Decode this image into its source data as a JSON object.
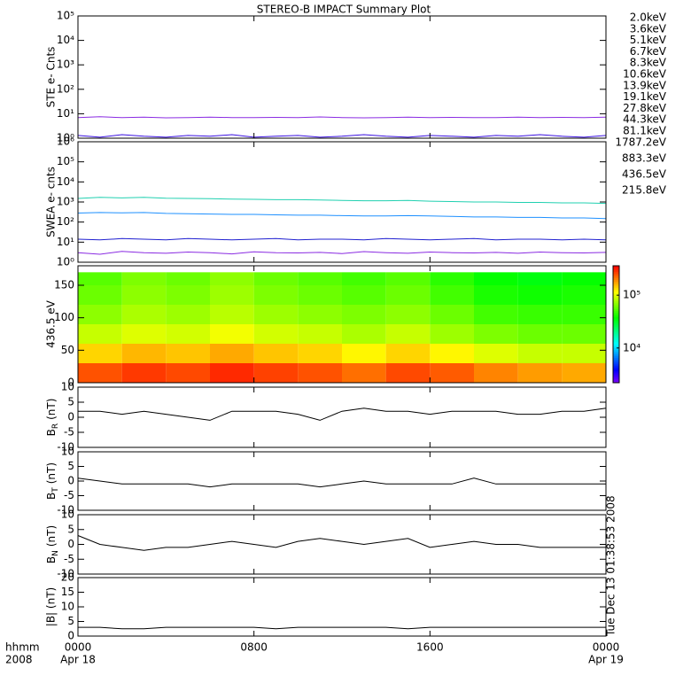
{
  "chart_data": [
    {
      "type": "line",
      "title": "STEREO-B IMPACT Summary Plot",
      "ylabel": "STE e- Cnts",
      "yscale": "log",
      "xlim": [
        0,
        24
      ],
      "ylim": [
        1,
        100000
      ],
      "yticks": [
        {
          "value": 1,
          "label": "10⁰"
        },
        {
          "value": 10,
          "label": "10¹"
        },
        {
          "value": 100,
          "label": "10²"
        },
        {
          "value": 1000,
          "label": "10³"
        },
        {
          "value": 10000,
          "label": "10⁴"
        },
        {
          "value": 100000,
          "label": "10⁵"
        }
      ],
      "x": [
        0,
        1,
        2,
        3,
        4,
        5,
        6,
        7,
        8,
        9,
        10,
        11,
        12,
        13,
        14,
        15,
        16,
        17,
        18,
        19,
        20,
        21,
        22,
        23,
        24
      ],
      "series": [
        {
          "name": "2.0keV",
          "color": "#8a2be2",
          "values": [
            7,
            7.5,
            7,
            7.2,
            6.8,
            7,
            7.3,
            7,
            6.9,
            7.1,
            7,
            7.4,
            7,
            6.8,
            7,
            7.2,
            7,
            7.1,
            6.9,
            7,
            7.3,
            7,
            7.1,
            7,
            7.2
          ]
        },
        {
          "name": "3.6keV",
          "color": "#3a10e0",
          "values": [
            1.3,
            1.1,
            1.4,
            1.2,
            1.1,
            1.3,
            1.2,
            1.4,
            1.1,
            1.2,
            1.3,
            1.1,
            1.2,
            1.4,
            1.2,
            1.1,
            1.3,
            1.2,
            1.1,
            1.3,
            1.2,
            1.4,
            1.2,
            1.1,
            1.3
          ]
        },
        {
          "name": "5.1keV",
          "color": "#0050ff",
          "values": [
            null,
            null,
            null,
            null,
            null,
            null,
            null,
            null,
            null,
            null,
            null,
            null,
            null,
            null,
            null,
            null,
            null,
            null,
            null,
            null,
            null,
            null,
            null,
            null,
            null
          ]
        },
        {
          "name": "6.7keV",
          "color": "#00a8ff",
          "values": [
            null,
            null,
            null,
            null,
            null,
            null,
            null,
            null,
            null,
            null,
            null,
            null,
            null,
            null,
            null,
            null,
            null,
            null,
            null,
            null,
            null,
            null,
            null,
            null,
            null
          ]
        },
        {
          "name": "8.3keV",
          "color": "#00d8d0",
          "values": [
            null,
            null,
            null,
            null,
            null,
            null,
            null,
            null,
            null,
            null,
            null,
            null,
            null,
            null,
            null,
            null,
            null,
            null,
            null,
            null,
            null,
            null,
            null,
            null,
            null
          ]
        },
        {
          "name": "10.6keV",
          "color": "#00c878",
          "values": [
            null,
            null,
            null,
            null,
            null,
            null,
            null,
            null,
            null,
            null,
            null,
            null,
            null,
            null,
            null,
            null,
            null,
            null,
            null,
            null,
            null,
            null,
            null,
            null,
            null
          ]
        },
        {
          "name": "13.9keV",
          "color": "#30c800",
          "values": [
            null,
            null,
            null,
            null,
            null,
            null,
            null,
            null,
            null,
            null,
            null,
            null,
            null,
            null,
            null,
            null,
            null,
            null,
            null,
            null,
            null,
            null,
            null,
            null,
            null
          ]
        },
        {
          "name": "19.1keV",
          "color": "#b8d800",
          "values": [
            null,
            null,
            null,
            null,
            null,
            null,
            null,
            null,
            null,
            null,
            null,
            null,
            null,
            null,
            null,
            null,
            null,
            null,
            null,
            null,
            null,
            null,
            null,
            null,
            null
          ]
        },
        {
          "name": "27.8keV",
          "color": "#ffb400",
          "values": [
            null,
            null,
            null,
            null,
            null,
            null,
            null,
            null,
            null,
            null,
            null,
            null,
            null,
            null,
            null,
            null,
            null,
            null,
            null,
            null,
            null,
            null,
            null,
            null,
            null
          ]
        },
        {
          "name": "44.3keV",
          "color": "#ff7000",
          "values": [
            null,
            null,
            null,
            null,
            null,
            null,
            null,
            null,
            null,
            null,
            null,
            null,
            null,
            null,
            null,
            null,
            null,
            null,
            null,
            null,
            null,
            null,
            null,
            null,
            null
          ]
        },
        {
          "name": "81.1keV",
          "color": "#e02010",
          "values": [
            null,
            null,
            null,
            null,
            null,
            null,
            null,
            null,
            null,
            null,
            null,
            null,
            null,
            null,
            null,
            null,
            null,
            null,
            null,
            null,
            null,
            null,
            null,
            null,
            null
          ]
        }
      ]
    },
    {
      "type": "line",
      "ylabel": "SWEA e- cnts",
      "yscale": "log",
      "xlim": [
        0,
        24
      ],
      "ylim": [
        1,
        1000000
      ],
      "yticks": [
        {
          "value": 1,
          "label": "10⁰"
        },
        {
          "value": 10,
          "label": "10¹"
        },
        {
          "value": 100,
          "label": "10²"
        },
        {
          "value": 1000,
          "label": "10³"
        },
        {
          "value": 10000,
          "label": "10⁴"
        },
        {
          "value": 100000,
          "label": "10⁵"
        },
        {
          "value": 1000000,
          "label": "10⁶"
        }
      ],
      "x": [
        0,
        1,
        2,
        3,
        4,
        5,
        6,
        7,
        8,
        9,
        10,
        11,
        12,
        13,
        14,
        15,
        16,
        17,
        18,
        19,
        20,
        21,
        22,
        23,
        24
      ],
      "series": [
        {
          "name": "1787.2eV",
          "color": "#8a2be2",
          "values": [
            3,
            2.5,
            3.5,
            3,
            2.8,
            3.2,
            3,
            2.6,
            3.3,
            3,
            2.9,
            3.1,
            2.7,
            3.4,
            3,
            2.8,
            3.2,
            3,
            2.9,
            3.1,
            2.8,
            3.2,
            3,
            2.9,
            3.1
          ]
        },
        {
          "name": "883.3eV",
          "color": "#2020d0",
          "values": [
            14,
            13,
            15,
            14,
            13,
            15,
            14,
            13,
            14,
            15,
            13,
            14,
            14,
            13,
            15,
            14,
            13,
            14,
            15,
            13,
            14,
            14,
            13,
            14,
            13
          ]
        },
        {
          "name": "436.5eV",
          "color": "#1e90ff",
          "values": [
            280,
            300,
            290,
            300,
            270,
            260,
            250,
            240,
            240,
            230,
            220,
            220,
            210,
            200,
            200,
            210,
            200,
            190,
            180,
            180,
            170,
            170,
            160,
            160,
            150
          ]
        },
        {
          "name": "215.8eV",
          "color": "#20d0b0",
          "values": [
            1500,
            1700,
            1600,
            1700,
            1550,
            1500,
            1450,
            1400,
            1350,
            1300,
            1300,
            1250,
            1200,
            1150,
            1150,
            1200,
            1100,
            1050,
            1000,
            1000,
            950,
            950,
            900,
            900,
            850
          ]
        }
      ]
    },
    {
      "type": "heatmap",
      "ylabel": "436.5 eV",
      "xlim": [
        0,
        24
      ],
      "ylim": [
        0,
        180
      ],
      "yticks": [
        0,
        50,
        100,
        150
      ],
      "xbins": [
        0,
        2,
        4,
        6,
        8,
        10,
        12,
        14,
        16,
        18,
        20,
        22,
        24
      ],
      "ybins": [
        0,
        30,
        60,
        90,
        120,
        150,
        170
      ],
      "z": [
        [
          250000,
          280000,
          260000,
          300000,
          270000,
          250000,
          220000,
          260000,
          240000,
          200000,
          180000,
          170000
        ],
        [
          140000,
          160000,
          150000,
          170000,
          150000,
          140000,
          120000,
          140000,
          120000,
          100000,
          90000,
          90000
        ],
        [
          90000,
          100000,
          95000,
          110000,
          95000,
          90000,
          80000,
          90000,
          75000,
          65000,
          60000,
          60000
        ],
        [
          70000,
          80000,
          75000,
          85000,
          75000,
          70000,
          65000,
          70000,
          60000,
          50000,
          48000,
          48000
        ],
        [
          60000,
          70000,
          65000,
          75000,
          65000,
          60000,
          55000,
          60000,
          50000,
          42000,
          40000,
          42000
        ],
        [
          55000,
          65000,
          60000,
          70000,
          60000,
          55000,
          50000,
          55000,
          45000,
          38000,
          35000,
          38000
        ]
      ],
      "clim": [
        2200,
        360000
      ],
      "cscale": "log",
      "cticks": [
        {
          "value": 10000,
          "label": "10⁴"
        },
        {
          "value": 100000,
          "label": "10⁵"
        }
      ]
    },
    {
      "type": "line",
      "ylabel": "B",
      "ylabel_sub": "R",
      "ylabel_unit": "(nT)",
      "xlim": [
        0,
        24
      ],
      "ylim": [
        -10,
        10
      ],
      "yticks": [
        -10,
        -5,
        0,
        5,
        10
      ],
      "x": [
        0,
        1,
        2,
        3,
        4,
        5,
        6,
        7,
        8,
        9,
        10,
        11,
        12,
        13,
        14,
        15,
        16,
        17,
        18,
        19,
        20,
        21,
        22,
        23,
        24
      ],
      "series": [
        {
          "color": "#000000",
          "values": [
            2,
            2,
            1,
            2,
            1,
            0,
            -1,
            2,
            2,
            2,
            1,
            -1,
            2,
            3,
            2,
            2,
            1,
            2,
            2,
            2,
            1,
            1,
            2,
            2,
            3
          ]
        }
      ]
    },
    {
      "type": "line",
      "ylabel": "B",
      "ylabel_sub": "T",
      "ylabel_unit": "(nT)",
      "xlim": [
        0,
        24
      ],
      "ylim": [
        -10,
        10
      ],
      "yticks": [
        -10,
        -5,
        0,
        5,
        10
      ],
      "x": [
        0,
        1,
        2,
        3,
        4,
        5,
        6,
        7,
        8,
        9,
        10,
        11,
        12,
        13,
        14,
        15,
        16,
        17,
        18,
        19,
        20,
        21,
        22,
        23,
        24
      ],
      "series": [
        {
          "color": "#000000",
          "values": [
            1,
            0,
            -1,
            -1,
            -1,
            -1,
            -2,
            -1,
            -1,
            -1,
            -1,
            -2,
            -1,
            0,
            -1,
            -1,
            -1,
            -1,
            1,
            -1,
            -1,
            -1,
            -1,
            -1,
            -1
          ]
        }
      ]
    },
    {
      "type": "line",
      "ylabel": "B",
      "ylabel_sub": "N",
      "ylabel_unit": "(nT)",
      "xlim": [
        0,
        24
      ],
      "ylim": [
        -10,
        10
      ],
      "yticks": [
        -10,
        -5,
        0,
        5,
        10
      ],
      "x": [
        0,
        1,
        2,
        3,
        4,
        5,
        6,
        7,
        8,
        9,
        10,
        11,
        12,
        13,
        14,
        15,
        16,
        17,
        18,
        19,
        20,
        21,
        22,
        23,
        24
      ],
      "series": [
        {
          "color": "#000000",
          "values": [
            3,
            0,
            -1,
            -2,
            -1,
            -1,
            0,
            1,
            0,
            -1,
            1,
            2,
            1,
            0,
            1,
            2,
            -1,
            0,
            1,
            0,
            0,
            -1,
            -1,
            -1,
            -1
          ]
        }
      ]
    },
    {
      "type": "line",
      "ylabel": "|B| (nT)",
      "xlim": [
        0,
        24
      ],
      "ylim": [
        0,
        20
      ],
      "yticks": [
        0,
        5,
        10,
        15,
        20
      ],
      "x": [
        0,
        1,
        2,
        3,
        4,
        5,
        6,
        7,
        8,
        9,
        10,
        11,
        12,
        13,
        14,
        15,
        16,
        17,
        18,
        19,
        20,
        21,
        22,
        23,
        24
      ],
      "series": [
        {
          "color": "#000000",
          "values": [
            3,
            3,
            2.5,
            2.5,
            3,
            3,
            3,
            3,
            3,
            2.5,
            3,
            3,
            3,
            3,
            3,
            2.5,
            3,
            3,
            3,
            3,
            3,
            3,
            3,
            3,
            3
          ]
        }
      ],
      "xticks": [
        {
          "value": 0,
          "label": "0000"
        },
        {
          "value": 8,
          "label": "0800"
        },
        {
          "value": 16,
          "label": "1600"
        },
        {
          "value": 24,
          "label": "0000"
        }
      ],
      "xdates": [
        {
          "value": 0,
          "label": "Apr 18"
        },
        {
          "value": 24,
          "label": "Apr 19"
        }
      ],
      "xunit": "hhmm",
      "xyear": "2008",
      "annotation": "Tue Dec 13 01:38:53 2008"
    }
  ]
}
